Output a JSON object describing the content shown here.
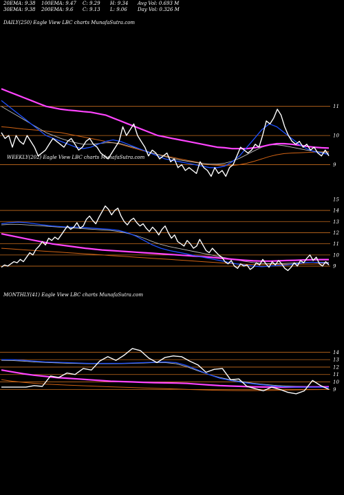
{
  "header": {
    "row1": [
      "20EMA: 9.38",
      "100EMA: 9.47",
      "C: 9.29",
      "H: 9.34",
      "Avg Vol: 0.693 M"
    ],
    "row2": [
      "30EMA: 9.38",
      "200EMA: 9.6",
      "C: 9.13",
      "L: 9.06",
      "Day Vol: 0.326  M"
    ]
  },
  "colors": {
    "background": "#000000",
    "price": "#ffffff",
    "ema_blue": "#1e50ff",
    "ema_magenta": "#ff44ff",
    "ema_orange": "#d26414",
    "ema_gray": "#bdbdbd",
    "level_line": "#c86e1e"
  },
  "chart_data": [
    {
      "type": "line",
      "title": "DAILY(250) Eagle   View  LBC charts MunafaSutra.com",
      "y_ticks": [
        "11",
        "10",
        "9"
      ],
      "h_levels": [
        11,
        10,
        9
      ],
      "ylim": [
        8.4,
        11.7
      ],
      "series": [
        {
          "role": "price",
          "values": [
            10.1,
            9.9,
            10.0,
            9.6,
            10.0,
            9.8,
            9.7,
            10.0,
            9.8,
            9.6,
            9.3,
            9.4,
            9.5,
            9.7,
            9.9,
            9.8,
            9.7,
            9.6,
            9.8,
            9.9,
            9.7,
            9.5,
            9.6,
            9.8,
            9.9,
            9.7,
            9.6,
            9.4,
            9.3,
            9.2,
            9.4,
            9.6,
            9.8,
            10.3,
            10.0,
            10.2,
            10.4,
            10.0,
            9.8,
            9.6,
            9.3,
            9.5,
            9.4,
            9.2,
            9.3,
            9.4,
            9.1,
            9.2,
            8.9,
            9.0,
            8.8,
            8.9,
            8.8,
            8.7,
            9.1,
            8.9,
            8.8,
            8.6,
            8.9,
            8.7,
            8.8,
            8.6,
            8.9,
            9.0,
            9.3,
            9.6,
            9.5,
            9.4,
            9.5,
            9.7,
            9.6,
            10.0,
            10.5,
            10.4,
            10.6,
            10.9,
            10.7,
            10.3,
            10.0,
            9.8,
            9.7,
            9.8,
            9.6,
            9.7,
            9.5,
            9.6,
            9.4,
            9.3,
            9.5,
            9.3
          ]
        },
        {
          "role": "ema_blue",
          "values": [
            11.2,
            11.0,
            10.8,
            10.6,
            10.4,
            10.2,
            10.0,
            9.9,
            9.8,
            9.7,
            9.6,
            9.55,
            9.6,
            9.7,
            9.8,
            9.85,
            9.8,
            9.7,
            9.6,
            9.5,
            9.4,
            9.3,
            9.2,
            9.15,
            9.1,
            9.05,
            9.0,
            8.95,
            8.9,
            8.9,
            8.95,
            9.1,
            9.3,
            9.6,
            9.9,
            10.2,
            10.4,
            10.3,
            10.1,
            9.9,
            9.7,
            9.55,
            9.45,
            9.4,
            9.35
          ]
        },
        {
          "role": "ema_gray",
          "values": [
            11.0,
            10.85,
            10.7,
            10.55,
            10.4,
            10.25,
            10.1,
            10.0,
            9.9,
            9.82,
            9.75,
            9.7,
            9.7,
            9.72,
            9.75,
            9.75,
            9.72,
            9.65,
            9.58,
            9.5,
            9.42,
            9.35,
            9.28,
            9.22,
            9.16,
            9.12,
            9.08,
            9.04,
            9.02,
            9.02,
            9.05,
            9.12,
            9.22,
            9.35,
            9.48,
            9.6,
            9.68,
            9.68,
            9.65,
            9.6,
            9.55,
            9.5,
            9.46,
            9.43,
            9.4
          ]
        },
        {
          "role": "ema_magenta",
          "values": [
            11.6,
            11.5,
            11.4,
            11.3,
            11.2,
            11.1,
            11.0,
            10.95,
            10.9,
            10.87,
            10.85,
            10.82,
            10.8,
            10.75,
            10.7,
            10.6,
            10.5,
            10.4,
            10.3,
            10.2,
            10.1,
            10.0,
            9.95,
            9.9,
            9.85,
            9.8,
            9.75,
            9.7,
            9.65,
            9.6,
            9.58,
            9.55,
            9.55,
            9.55,
            9.58,
            9.62,
            9.68,
            9.72,
            9.72,
            9.7,
            9.67,
            9.63,
            9.6,
            9.58,
            9.57
          ]
        },
        {
          "role": "ema_orange",
          "values": [
            10.3,
            10.28,
            10.25,
            10.22,
            10.2,
            10.18,
            10.15,
            10.12,
            10.1,
            10.05,
            10.0,
            9.95,
            9.9,
            9.85,
            9.8,
            9.75,
            9.7,
            9.62,
            9.55,
            9.48,
            9.42,
            9.35,
            9.3,
            9.25,
            9.2,
            9.15,
            9.1,
            9.05,
            9.0,
            8.98,
            8.97,
            8.97,
            9.0,
            9.05,
            9.12,
            9.2,
            9.28,
            9.34,
            9.38,
            9.4,
            9.41,
            9.42,
            9.43,
            9.44,
            9.45
          ]
        }
      ]
    },
    {
      "type": "line",
      "title": "WEEKLY(202) Eagle   View  LBC charts MunafaSutra.com",
      "y_ticks": [
        "15",
        "14",
        "13",
        "12",
        "11",
        "10",
        "9"
      ],
      "h_levels": [
        14,
        13,
        12,
        11,
        10,
        9
      ],
      "ylim": [
        8.2,
        15.3
      ],
      "series": [
        {
          "role": "price",
          "values": [
            8.9,
            9.1,
            9.0,
            9.2,
            9.4,
            9.3,
            9.6,
            9.4,
            9.8,
            10.2,
            10.0,
            10.5,
            10.8,
            11.2,
            10.9,
            11.5,
            11.3,
            11.6,
            11.4,
            11.8,
            12.2,
            12.6,
            12.3,
            12.5,
            12.9,
            12.4,
            12.6,
            13.2,
            13.5,
            13.1,
            12.8,
            13.4,
            13.9,
            14.4,
            14.1,
            13.6,
            14.0,
            14.2,
            13.5,
            13.0,
            12.7,
            13.1,
            13.3,
            12.9,
            12.6,
            12.8,
            12.4,
            12.1,
            12.5,
            12.2,
            11.8,
            12.3,
            12.6,
            12.0,
            11.5,
            11.8,
            11.2,
            11.0,
            10.8,
            11.3,
            11.0,
            10.6,
            10.8,
            11.4,
            10.9,
            10.4,
            10.2,
            10.6,
            10.3,
            10.0,
            9.8,
            9.4,
            9.2,
            9.5,
            9.0,
            8.8,
            9.2,
            9.0,
            9.1,
            8.7,
            8.9,
            9.3,
            9.1,
            9.6,
            9.2,
            8.9,
            9.4,
            9.1,
            9.5,
            9.2,
            8.8,
            8.6,
            8.9,
            9.3,
            9.0,
            9.5,
            9.3,
            9.7,
            10.0,
            9.5,
            9.8,
            9.2,
            9.0,
            9.4,
            9.1
          ]
        },
        {
          "role": "ema_blue",
          "values": [
            12.8,
            12.9,
            12.95,
            12.9,
            12.8,
            12.7,
            12.6,
            12.55,
            12.5,
            12.5,
            12.45,
            12.4,
            12.35,
            12.3,
            12.2,
            12.0,
            11.7,
            11.3,
            10.9,
            10.6,
            10.4,
            10.25,
            10.1,
            9.95,
            9.8,
            9.65,
            9.5,
            9.35,
            9.2,
            9.1,
            9.0,
            8.95,
            9.0,
            9.05,
            9.1,
            9.2,
            9.3,
            9.35,
            9.3,
            9.25
          ]
        },
        {
          "role": "ema_gray",
          "values": [
            12.7,
            12.75,
            12.75,
            12.7,
            12.65,
            12.6,
            12.55,
            12.5,
            12.45,
            12.4,
            12.35,
            12.3,
            12.25,
            12.2,
            12.1,
            11.95,
            11.75,
            11.5,
            11.2,
            10.95,
            10.75,
            10.6,
            10.45,
            10.3,
            10.15,
            10.0,
            9.85,
            9.7,
            9.55,
            9.42,
            9.32,
            9.25,
            9.22,
            9.22,
            9.25,
            9.28,
            9.32,
            9.35,
            9.35,
            9.33
          ]
        },
        {
          "role": "ema_magenta",
          "values": [
            11.9,
            11.75,
            11.6,
            11.45,
            11.3,
            11.15,
            11.0,
            10.9,
            10.8,
            10.7,
            10.6,
            10.52,
            10.45,
            10.4,
            10.35,
            10.3,
            10.25,
            10.2,
            10.15,
            10.1,
            10.05,
            10.0,
            9.95,
            9.9,
            9.85,
            9.8,
            9.72,
            9.65,
            9.58,
            9.52,
            9.47,
            9.45,
            9.45,
            9.47,
            9.5,
            9.52,
            9.55,
            9.57,
            9.58,
            9.58
          ]
        },
        {
          "role": "ema_orange",
          "values": [
            10.6,
            10.55,
            10.5,
            10.45,
            10.4,
            10.35,
            10.3,
            10.25,
            10.2,
            10.15,
            10.1,
            10.05,
            10.0,
            9.95,
            9.9,
            9.85,
            9.8,
            9.75,
            9.7,
            9.65,
            9.6,
            9.55,
            9.5,
            9.45,
            9.4,
            9.35,
            9.3,
            9.25,
            9.2,
            9.17,
            9.15,
            9.14,
            9.14,
            9.15,
            9.16,
            9.17,
            9.18,
            9.19,
            9.2,
            9.2
          ]
        }
      ]
    },
    {
      "type": "line",
      "title": "MONTHLY(41) Eagle   View  LBC charts MunafaSutra.com",
      "y_ticks": [
        "14",
        "13",
        "12",
        "11",
        "10",
        "9"
      ],
      "h_levels": [
        14,
        13,
        12,
        11,
        10,
        9
      ],
      "ylim": [
        8.2,
        15.6
      ],
      "series": [
        {
          "role": "price",
          "values": [
            9.3,
            9.3,
            9.3,
            9.3,
            9.5,
            9.4,
            10.8,
            10.6,
            11.2,
            11.0,
            11.8,
            11.6,
            12.8,
            13.4,
            12.9,
            13.6,
            14.5,
            14.2,
            13.2,
            12.6,
            13.3,
            13.5,
            13.4,
            12.8,
            12.3,
            11.3,
            11.7,
            11.8,
            10.3,
            10.4,
            9.4,
            9.1,
            8.8,
            9.3,
            9.0,
            8.6,
            8.4,
            8.8,
            10.2,
            9.5,
            9.0
          ]
        },
        {
          "role": "ema_blue",
          "values": [
            13.0,
            13.0,
            12.9,
            12.8,
            12.7,
            12.65,
            12.6,
            12.55,
            12.5,
            12.5,
            12.5,
            12.5,
            12.55,
            12.6,
            12.65,
            12.7,
            12.6,
            12.2,
            11.6,
            11.0,
            10.5,
            10.2,
            9.95,
            9.75,
            9.6,
            9.45,
            9.35,
            9.3,
            9.3,
            9.3,
            9.25
          ]
        },
        {
          "role": "ema_gray",
          "values": [
            12.9,
            12.88,
            12.8,
            12.7,
            12.62,
            12.57,
            12.52,
            12.48,
            12.45,
            12.45,
            12.45,
            12.46,
            12.5,
            12.55,
            12.6,
            12.6,
            12.45,
            12.05,
            11.5,
            11.0,
            10.6,
            10.3,
            10.05,
            9.85,
            9.68,
            9.55,
            9.45,
            9.4,
            9.38,
            9.36,
            9.34
          ]
        },
        {
          "role": "ema_magenta",
          "values": [
            11.6,
            11.35,
            11.1,
            10.9,
            10.75,
            10.6,
            10.5,
            10.4,
            10.3,
            10.2,
            10.1,
            10.05,
            10.0,
            9.95,
            9.9,
            9.87,
            9.85,
            9.8,
            9.7,
            9.6,
            9.5,
            9.45,
            9.4,
            9.35,
            9.32,
            9.3,
            9.3,
            9.32,
            9.33,
            9.34,
            9.35
          ]
        },
        {
          "role": "ema_orange",
          "values": [
            10.3,
            10.1,
            9.95,
            9.82,
            9.72,
            9.64,
            9.58,
            9.52,
            9.46,
            9.4,
            9.35,
            9.3,
            9.25,
            9.2,
            9.15,
            9.1,
            9.05,
            9.0,
            8.95,
            8.9,
            8.87,
            8.85,
            8.84,
            8.84,
            8.85,
            8.87,
            8.9,
            8.93,
            8.96,
            8.98,
            9.0
          ]
        }
      ]
    }
  ]
}
